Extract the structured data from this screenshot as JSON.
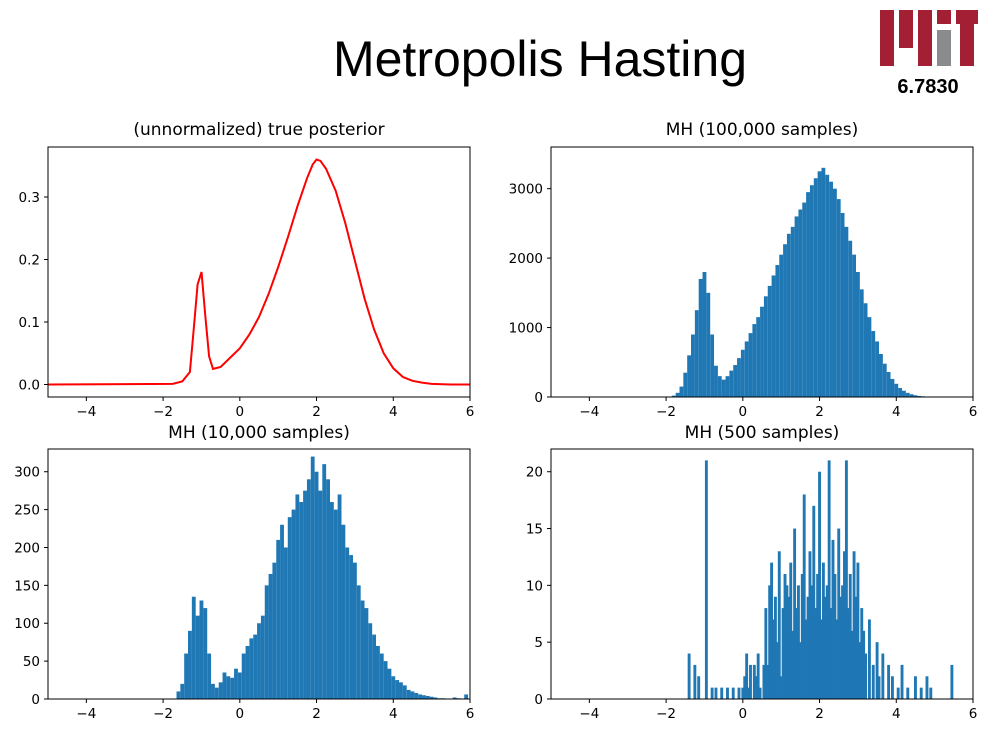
{
  "slide": {
    "title": "Metropolis Hasting",
    "course_number": "6.7830",
    "logo": "MIT"
  },
  "colors": {
    "curve": "#ff0000",
    "bars": "#1f77b4",
    "logo_red": "#a31f34",
    "logo_gray": "#8a8b8c"
  },
  "chart_data": [
    {
      "type": "line",
      "title": "(unnormalized) true posterior",
      "xlim": [
        -5,
        6
      ],
      "ylim": [
        -0.02,
        0.38
      ],
      "xticks": [
        -4,
        -2,
        0,
        2,
        4,
        6
      ],
      "yticks": [
        0.0,
        0.1,
        0.2,
        0.3
      ],
      "ytick_labels": [
        "0.0",
        "0.1",
        "0.2",
        "0.3"
      ],
      "series": [
        {
          "color": "#ff0000",
          "x": [
            -5,
            -1.75,
            -1.5,
            -1.3,
            -1.2,
            -1.1,
            -1.0,
            -0.9,
            -0.8,
            -0.7,
            -0.5,
            -0.3,
            0,
            0.25,
            0.5,
            0.75,
            1.0,
            1.25,
            1.5,
            1.75,
            1.9,
            2.0,
            2.1,
            2.25,
            2.5,
            2.75,
            3.0,
            3.25,
            3.5,
            3.75,
            4.0,
            4.25,
            4.5,
            4.75,
            5.0,
            5.5,
            6.0
          ],
          "y": [
            0,
            0.001,
            0.005,
            0.02,
            0.09,
            0.16,
            0.18,
            0.11,
            0.045,
            0.025,
            0.028,
            0.04,
            0.058,
            0.08,
            0.108,
            0.145,
            0.188,
            0.235,
            0.285,
            0.33,
            0.352,
            0.36,
            0.358,
            0.345,
            0.31,
            0.258,
            0.198,
            0.138,
            0.088,
            0.05,
            0.026,
            0.012,
            0.006,
            0.003,
            0.001,
            0,
            0
          ]
        }
      ]
    },
    {
      "type": "bar",
      "title": "MH (100,000 samples)",
      "xlim": [
        -5,
        6
      ],
      "ylim": [
        0,
        3600
      ],
      "xticks": [
        -4,
        -2,
        0,
        2,
        4,
        6
      ],
      "yticks": [
        0,
        1000,
        2000,
        3000
      ],
      "bin_width": 0.1,
      "x": [
        -1.8,
        -1.7,
        -1.6,
        -1.5,
        -1.4,
        -1.3,
        -1.2,
        -1.1,
        -1.0,
        -0.9,
        -0.8,
        -0.7,
        -0.6,
        -0.5,
        -0.4,
        -0.3,
        -0.2,
        -0.1,
        0.0,
        0.1,
        0.2,
        0.3,
        0.4,
        0.5,
        0.6,
        0.7,
        0.8,
        0.9,
        1.0,
        1.1,
        1.2,
        1.3,
        1.4,
        1.5,
        1.6,
        1.7,
        1.8,
        1.9,
        2.0,
        2.1,
        2.2,
        2.3,
        2.4,
        2.5,
        2.6,
        2.7,
        2.8,
        2.9,
        3.0,
        3.1,
        3.2,
        3.3,
        3.4,
        3.5,
        3.6,
        3.7,
        3.8,
        3.9,
        4.0,
        4.1,
        4.2,
        4.3,
        4.4,
        4.5,
        4.6,
        4.7,
        4.8,
        4.9,
        5.0,
        5.1
      ],
      "values": [
        20,
        60,
        150,
        350,
        600,
        900,
        1250,
        1700,
        1800,
        1500,
        900,
        450,
        300,
        250,
        300,
        380,
        460,
        560,
        680,
        800,
        920,
        1050,
        1150,
        1300,
        1450,
        1600,
        1750,
        1900,
        2050,
        2200,
        2350,
        2450,
        2600,
        2700,
        2800,
        2950,
        3050,
        3150,
        3250,
        3300,
        3200,
        3100,
        3000,
        2850,
        2650,
        2450,
        2250,
        2050,
        1800,
        1550,
        1350,
        1150,
        950,
        800,
        620,
        480,
        360,
        260,
        190,
        130,
        90,
        60,
        40,
        25,
        15,
        10,
        6,
        3,
        2,
        1
      ]
    },
    {
      "type": "bar",
      "title": "MH (10,000 samples)",
      "xlim": [
        -5,
        6
      ],
      "ylim": [
        0,
        330
      ],
      "xticks": [
        -4,
        -2,
        0,
        2,
        4,
        6
      ],
      "yticks": [
        0,
        50,
        100,
        150,
        200,
        250,
        300
      ],
      "bin_width": 0.1,
      "x": [
        -1.6,
        -1.5,
        -1.4,
        -1.3,
        -1.2,
        -1.1,
        -1.0,
        -0.9,
        -0.8,
        -0.7,
        -0.6,
        -0.5,
        -0.4,
        -0.3,
        -0.2,
        -0.1,
        0.0,
        0.1,
        0.2,
        0.3,
        0.4,
        0.5,
        0.6,
        0.7,
        0.8,
        0.9,
        1.0,
        1.1,
        1.2,
        1.3,
        1.4,
        1.5,
        1.6,
        1.7,
        1.8,
        1.9,
        2.0,
        2.1,
        2.2,
        2.3,
        2.4,
        2.5,
        2.6,
        2.7,
        2.8,
        2.9,
        3.0,
        3.1,
        3.2,
        3.3,
        3.4,
        3.5,
        3.6,
        3.7,
        3.8,
        3.9,
        4.0,
        4.1,
        4.2,
        4.3,
        4.4,
        4.5,
        4.6,
        4.7,
        4.8,
        4.9,
        5.0,
        5.1,
        5.2,
        5.3,
        5.6,
        5.7,
        5.9
      ],
      "values": [
        10,
        20,
        60,
        90,
        135,
        110,
        130,
        120,
        60,
        20,
        15,
        22,
        35,
        30,
        28,
        40,
        35,
        60,
        70,
        80,
        85,
        100,
        110,
        150,
        165,
        180,
        210,
        230,
        200,
        240,
        250,
        270,
        260,
        275,
        290,
        320,
        300,
        275,
        310,
        290,
        260,
        250,
        270,
        230,
        200,
        190,
        180,
        150,
        130,
        120,
        100,
        85,
        70,
        60,
        50,
        40,
        30,
        25,
        22,
        18,
        12,
        10,
        8,
        6,
        5,
        4,
        3,
        2,
        1,
        1,
        2,
        1,
        6
      ]
    },
    {
      "type": "bar",
      "title": "MH (500 samples)",
      "xlim": [
        -5,
        6
      ],
      "ylim": [
        0,
        22
      ],
      "xticks": [
        -4,
        -2,
        0,
        2,
        4,
        6
      ],
      "yticks": [
        0,
        5,
        10,
        15,
        20
      ],
      "bin_width": 0.075,
      "x": [
        -1.4,
        -1.25,
        -1.15,
        -0.95,
        -0.8,
        -0.7,
        -0.55,
        -0.4,
        -0.25,
        -0.1,
        0.0,
        0.05,
        0.1,
        0.15,
        0.2,
        0.3,
        0.35,
        0.4,
        0.45,
        0.55,
        0.6,
        0.65,
        0.7,
        0.75,
        0.8,
        0.85,
        0.9,
        0.95,
        1.0,
        1.05,
        1.1,
        1.15,
        1.2,
        1.25,
        1.3,
        1.35,
        1.4,
        1.45,
        1.5,
        1.55,
        1.6,
        1.65,
        1.7,
        1.75,
        1.8,
        1.85,
        1.9,
        1.95,
        2.0,
        2.05,
        2.1,
        2.15,
        2.2,
        2.25,
        2.3,
        2.35,
        2.4,
        2.45,
        2.5,
        2.55,
        2.6,
        2.65,
        2.7,
        2.75,
        2.8,
        2.85,
        2.9,
        2.95,
        3.0,
        3.05,
        3.1,
        3.15,
        3.2,
        3.3,
        3.4,
        3.5,
        3.55,
        3.65,
        3.8,
        3.9,
        4.05,
        4.15,
        4.3,
        4.5,
        4.65,
        4.8,
        4.9,
        5.45
      ],
      "values": [
        4,
        3,
        2,
        21,
        1,
        1,
        1,
        1,
        1,
        1,
        1,
        2,
        4,
        1,
        3,
        3,
        2,
        4,
        1,
        3,
        8,
        3,
        10,
        12,
        7,
        9,
        5,
        13,
        2,
        8,
        11,
        10,
        9,
        12,
        6,
        15,
        8,
        10,
        5,
        11,
        18,
        7,
        9,
        13,
        10,
        17,
        8,
        11,
        20,
        7,
        12,
        9,
        10,
        21,
        8,
        14,
        11,
        7,
        15,
        9,
        10,
        13,
        21,
        8,
        11,
        6,
        13,
        9,
        12,
        5,
        8,
        6,
        4,
        7,
        3,
        5,
        2,
        4,
        3,
        2,
        1,
        3,
        1,
        2,
        1,
        2,
        1,
        3
      ]
    }
  ]
}
